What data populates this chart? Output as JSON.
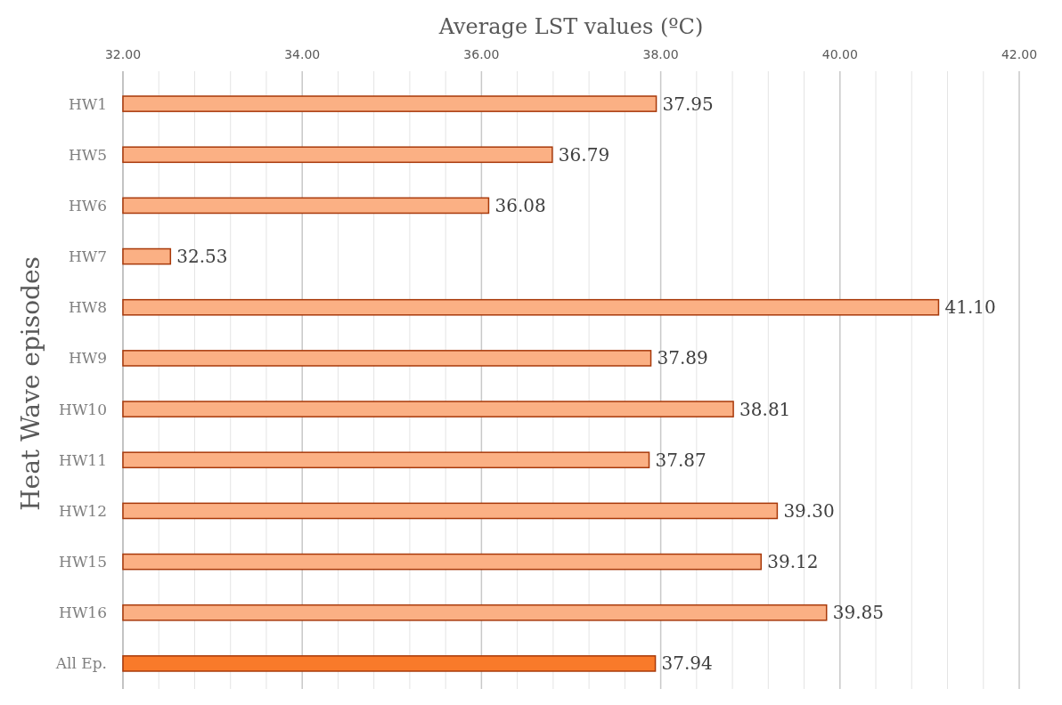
{
  "chart_data": {
    "type": "bar",
    "orientation": "horizontal",
    "xlabel": "Average LST values (ºC)",
    "ylabel": "Heat Wave episodes",
    "categories": [
      "HW1",
      "HW5",
      "HW6",
      "HW7",
      "HW8",
      "HW9",
      "HW10",
      "HW11",
      "HW12",
      "HW15",
      "HW16",
      "All Ep."
    ],
    "values": [
      37.95,
      36.79,
      36.08,
      32.53,
      41.1,
      37.89,
      38.81,
      37.87,
      39.3,
      39.12,
      39.85,
      37.94
    ],
    "value_labels": [
      "37.95",
      "36.79",
      "36.08",
      "32.53",
      "41.10",
      "37.89",
      "38.81",
      "37.87",
      "39.30",
      "39.12",
      "39.85",
      "37.94"
    ],
    "colors": [
      "#fbb084",
      "#fbb084",
      "#fbb084",
      "#fbb084",
      "#fbb084",
      "#fbb084",
      "#fbb084",
      "#fbb084",
      "#fbb084",
      "#fbb084",
      "#fbb084",
      "#f97a2a"
    ],
    "xlim": [
      32,
      42
    ],
    "xticks": [
      {
        "value": 32,
        "label": "32.00"
      },
      {
        "value": 32.4,
        "label": null
      },
      {
        "value": 32.8,
        "label": null
      },
      {
        "value": 33.2,
        "label": null
      },
      {
        "value": 33.6,
        "label": null
      },
      {
        "value": 34,
        "label": "34.00"
      },
      {
        "value": 34.4,
        "label": null
      },
      {
        "value": 34.8,
        "label": null
      },
      {
        "value": 35.2,
        "label": null
      },
      {
        "value": 35.6,
        "label": null
      },
      {
        "value": 36,
        "label": "36.00"
      },
      {
        "value": 36.4,
        "label": null
      },
      {
        "value": 36.8,
        "label": null
      },
      {
        "value": 37.2,
        "label": null
      },
      {
        "value": 37.6,
        "label": null
      },
      {
        "value": 38,
        "label": "38.00"
      },
      {
        "value": 38.4,
        "label": null
      },
      {
        "value": 38.8,
        "label": null
      },
      {
        "value": 39.2,
        "label": null
      },
      {
        "value": 39.6,
        "label": null
      },
      {
        "value": 40,
        "label": "40.00"
      },
      {
        "value": 40.4,
        "label": null
      },
      {
        "value": 40.8,
        "label": null
      },
      {
        "value": 41.2,
        "label": null
      },
      {
        "value": 41.6,
        "label": null
      },
      {
        "value": 42,
        "label": "42.00"
      }
    ],
    "grid": "x"
  }
}
